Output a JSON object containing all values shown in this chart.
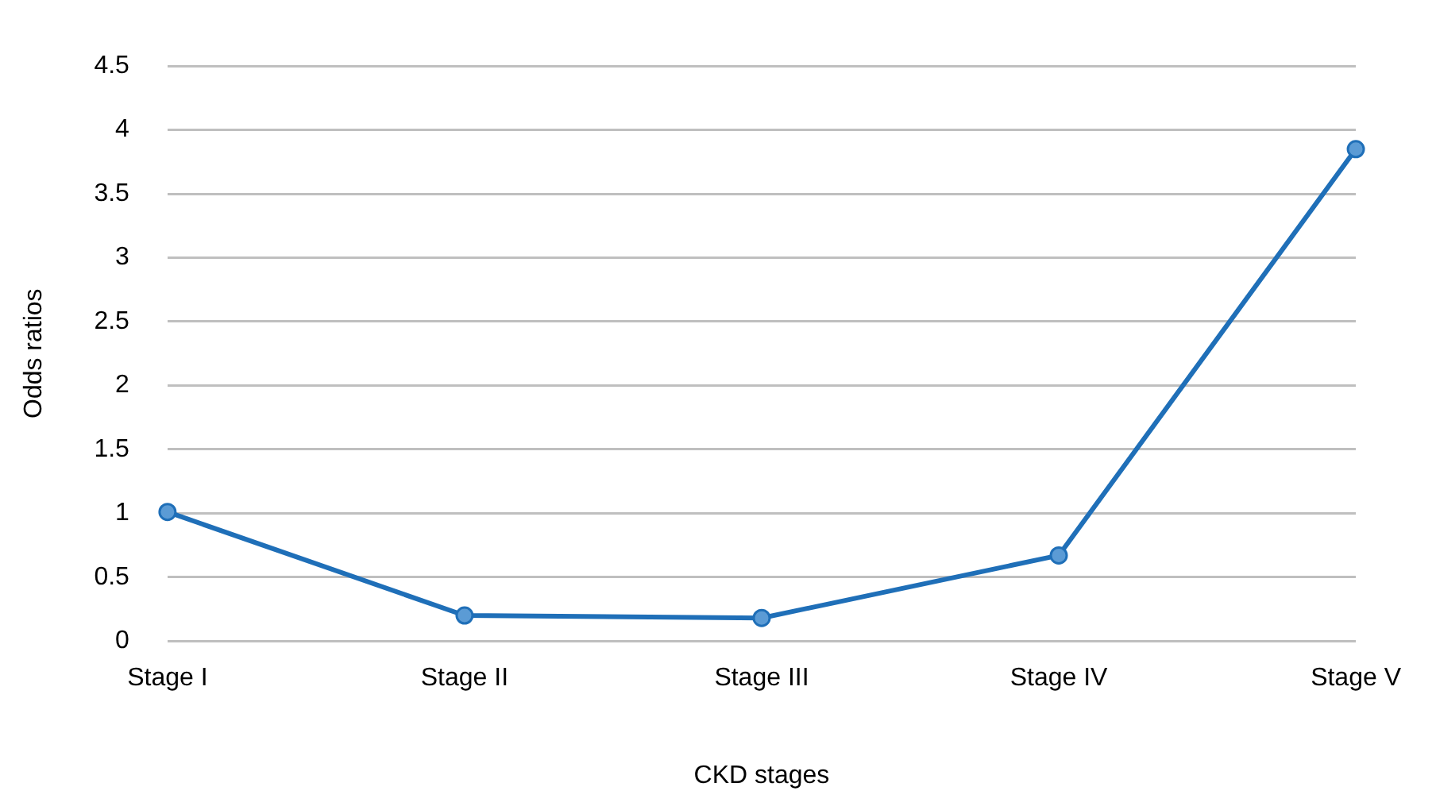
{
  "chart_data": {
    "type": "line",
    "xlabel": "CKD stages",
    "ylabel": "Odds ratios",
    "categories": [
      "Stage I",
      "Stage II",
      "Stage III",
      "Stage IV",
      "Stage V"
    ],
    "series": [
      {
        "color": "#1f6fb8",
        "values": [
          1.01,
          0.2,
          0.18,
          0.67,
          3.85
        ]
      }
    ],
    "ylim": [
      0,
      4.5
    ],
    "yticks": [
      0,
      0.5,
      1,
      1.5,
      2,
      2.5,
      3,
      3.5,
      4,
      4.5
    ],
    "grid": "y",
    "legend": false,
    "marker": "circle",
    "line_style": "solid"
  }
}
